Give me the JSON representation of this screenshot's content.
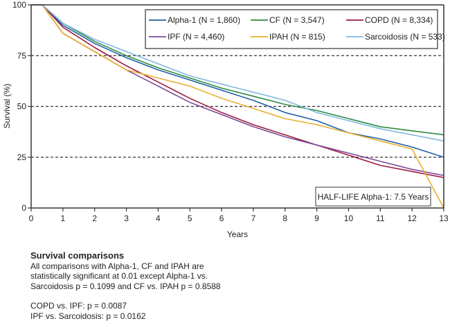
{
  "chart_data": {
    "type": "line",
    "title": "",
    "xlabel": "Years",
    "ylabel": "Survival (%)",
    "xlim": [
      0,
      13
    ],
    "ylim": [
      0,
      100
    ],
    "x_ticks": [
      0,
      1,
      2,
      3,
      4,
      5,
      6,
      7,
      8,
      9,
      10,
      11,
      12,
      13
    ],
    "y_ticks": [
      0,
      25,
      50,
      75,
      100
    ],
    "grid": "horizontal dashed at 25, 50, 75",
    "legend_position": "top-right",
    "x": [
      0,
      0.35,
      1,
      2,
      3,
      4,
      5,
      6,
      7,
      8,
      9,
      10,
      11,
      12,
      13
    ],
    "series": [
      {
        "name": "Alpha-1 (N = 1,860)",
        "color": "#1f5fa8",
        "values": [
          100,
          100,
          90,
          81,
          74,
          68,
          63,
          58,
          53,
          47,
          43,
          37,
          34,
          30,
          25
        ]
      },
      {
        "name": "CF (N = 3,547)",
        "color": "#2e8b3e",
        "values": [
          100,
          100,
          91,
          82,
          75,
          69,
          64,
          59,
          55,
          51,
          48,
          44,
          40,
          38,
          36
        ]
      },
      {
        "name": "COPD (N = 8,334)",
        "color": "#9b1b3f",
        "values": [
          100,
          100,
          89,
          79,
          70,
          62,
          54,
          47,
          41,
          36,
          31,
          26,
          21,
          18,
          15
        ]
      },
      {
        "name": "IPF (N = 4,460)",
        "color": "#7b4a9a",
        "values": [
          100,
          100,
          86,
          77,
          68,
          60,
          52,
          46,
          40,
          35,
          31,
          27,
          23,
          19,
          16
        ]
      },
      {
        "name": "IPAH (N = 815)",
        "color": "#e8b02a",
        "values": [
          100,
          100,
          86,
          77,
          68,
          64,
          60,
          54,
          49,
          44,
          41,
          37,
          33,
          29,
          0
        ]
      },
      {
        "name": "Sarcoidosis (N = 533)",
        "color": "#7fb8e0",
        "values": [
          100,
          100,
          91,
          83,
          77,
          71,
          65,
          61,
          57,
          53,
          47,
          43,
          39,
          36,
          33
        ]
      }
    ],
    "annotations": [
      "HALF-LIFE Alpha-1: 7.5 Years"
    ]
  },
  "footer": {
    "title": "Survival comparisons",
    "lines": [
      "All comparisons with Alpha-1, CF and IPAH are",
      "statistically significant at 0.01 except Alpha-1 vs.",
      "Sarcoidosis p = 0.1099 and CF vs. IPAH p = 0.8588"
    ],
    "extra": [
      "COPD vs. IPF: p = 0.0087",
      "IPF vs. Sarcoidosis: p = 0.0162"
    ]
  }
}
